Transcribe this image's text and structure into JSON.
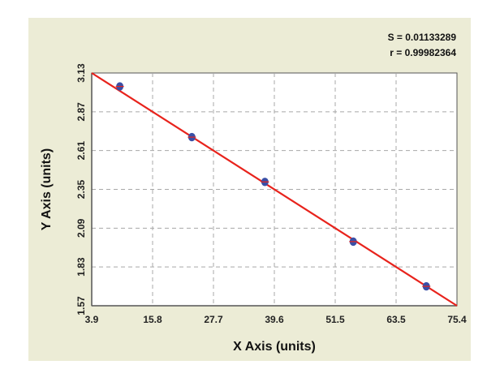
{
  "chart_data": {
    "type": "scatter",
    "xlabel": "X Axis (units)",
    "ylabel": "Y Axis (units)",
    "xlim": [
      3.9,
      75.4
    ],
    "ylim": [
      1.57,
      3.13
    ],
    "x_ticks": [
      "3.9",
      "15.8",
      "27.7",
      "39.6",
      "51.5",
      "63.5",
      "75.4"
    ],
    "y_ticks": [
      "1.57",
      "1.83",
      "2.09",
      "2.35",
      "2.61",
      "2.87",
      "3.13"
    ],
    "grid": true,
    "stats": {
      "s": "S = 0.01133289",
      "r": "r = 0.99982364"
    },
    "series": [
      {
        "x": [
          9.4,
          23.5,
          37.8,
          55.1,
          69.4
        ],
        "y": [
          3.04,
          2.7,
          2.4,
          2.0,
          1.7
        ],
        "color": "#3a4fa6"
      }
    ],
    "fit_line": {
      "x": [
        3.9,
        75.4
      ],
      "y": [
        3.13,
        1.57
      ],
      "color": "#e8231c"
    },
    "colors": {
      "background": "#ececd6",
      "plot_area": "#ffffff",
      "grid": "#a8a8a8",
      "axis": "#555555"
    }
  }
}
